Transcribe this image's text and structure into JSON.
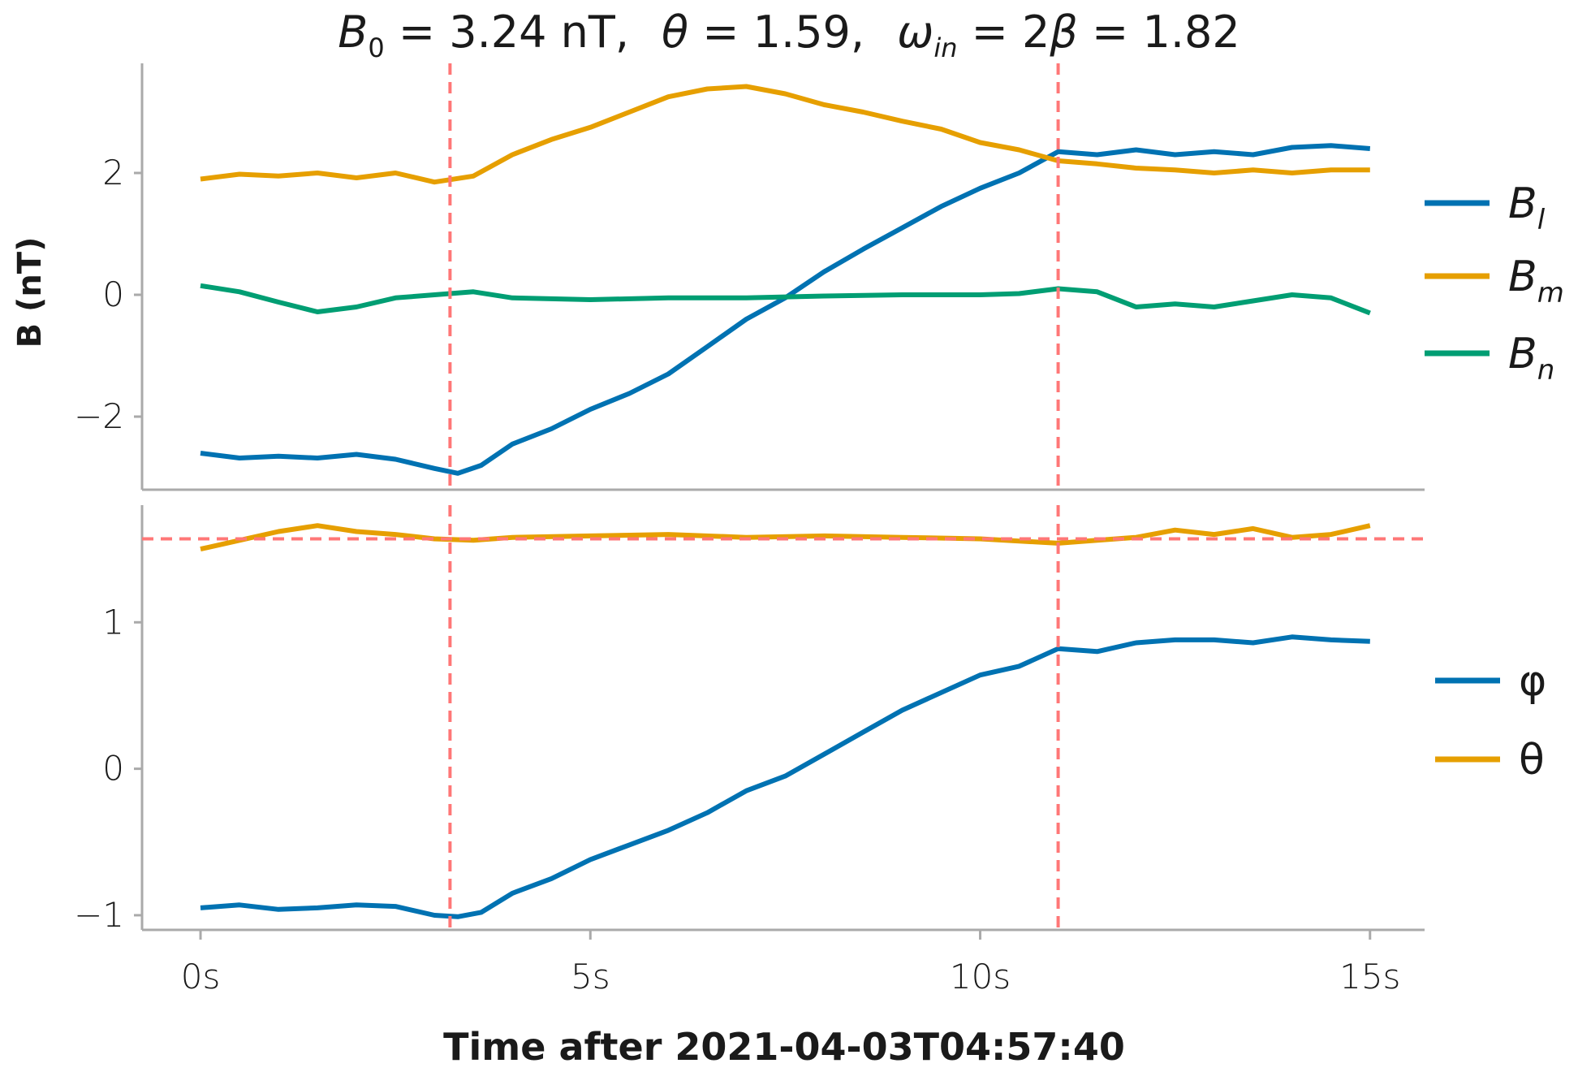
{
  "title": {
    "b0_sym": "B",
    "b0_sub": "0",
    "b0_val": " = 3.24 ",
    "b0_unit": "nT,",
    "theta_sym": "θ",
    "theta_val": " = 1.59,",
    "omega_sym": "ω",
    "omega_sub": "in",
    "omega_mid": " = 2",
    "beta_sym": "β",
    "omega_val": " = 1.82"
  },
  "chart_data": [
    {
      "type": "line",
      "ylabel": "B (nT)",
      "ylim": [
        -3.2,
        3.8
      ],
      "yticks": [
        2,
        0,
        -2
      ],
      "ytick_labels": [
        "2",
        "0",
        "−2"
      ],
      "vlines": [
        3.2,
        11.0
      ],
      "vline_color": "#ff7777",
      "legend_position": "right",
      "series": [
        {
          "name": "B_l",
          "legend_sym": "B",
          "legend_sub": "l",
          "color": "#0072b2",
          "points": [
            [
              0,
              -2.6
            ],
            [
              0.5,
              -2.68
            ],
            [
              1,
              -2.65
            ],
            [
              1.5,
              -2.68
            ],
            [
              2,
              -2.62
            ],
            [
              2.5,
              -2.7
            ],
            [
              3,
              -2.85
            ],
            [
              3.3,
              -2.93
            ],
            [
              3.6,
              -2.8
            ],
            [
              4,
              -2.45
            ],
            [
              4.5,
              -2.2
            ],
            [
              5,
              -1.88
            ],
            [
              5.5,
              -1.62
            ],
            [
              6,
              -1.3
            ],
            [
              6.5,
              -0.85
            ],
            [
              7,
              -0.4
            ],
            [
              7.5,
              -0.05
            ],
            [
              8,
              0.38
            ],
            [
              8.5,
              0.75
            ],
            [
              9,
              1.1
            ],
            [
              9.5,
              1.45
            ],
            [
              10,
              1.75
            ],
            [
              10.5,
              2.0
            ],
            [
              11,
              2.35
            ],
            [
              11.5,
              2.3
            ],
            [
              12,
              2.38
            ],
            [
              12.5,
              2.3
            ],
            [
              13,
              2.35
            ],
            [
              13.5,
              2.3
            ],
            [
              14,
              2.42
            ],
            [
              14.5,
              2.45
            ],
            [
              15,
              2.4
            ]
          ]
        },
        {
          "name": "B_m",
          "legend_sym": "B",
          "legend_sub": "m",
          "color": "#e69f00",
          "points": [
            [
              0,
              1.9
            ],
            [
              0.5,
              1.98
            ],
            [
              1,
              1.95
            ],
            [
              1.5,
              2.0
            ],
            [
              2,
              1.92
            ],
            [
              2.5,
              2.0
            ],
            [
              3,
              1.85
            ],
            [
              3.5,
              1.95
            ],
            [
              4,
              2.3
            ],
            [
              4.5,
              2.55
            ],
            [
              5,
              2.75
            ],
            [
              5.5,
              3.0
            ],
            [
              6,
              3.25
            ],
            [
              6.5,
              3.38
            ],
            [
              7,
              3.42
            ],
            [
              7.5,
              3.3
            ],
            [
              8,
              3.12
            ],
            [
              8.5,
              3.0
            ],
            [
              9,
              2.85
            ],
            [
              9.5,
              2.72
            ],
            [
              10,
              2.5
            ],
            [
              10.5,
              2.38
            ],
            [
              11,
              2.2
            ],
            [
              11.5,
              2.15
            ],
            [
              12,
              2.08
            ],
            [
              12.5,
              2.05
            ],
            [
              13,
              2.0
            ],
            [
              13.5,
              2.05
            ],
            [
              14,
              2.0
            ],
            [
              14.5,
              2.05
            ],
            [
              15,
              2.05
            ]
          ]
        },
        {
          "name": "B_n",
          "legend_sym": "B",
          "legend_sub": "n",
          "color": "#009e73",
          "points": [
            [
              0,
              0.15
            ],
            [
              0.5,
              0.05
            ],
            [
              1,
              -0.12
            ],
            [
              1.5,
              -0.28
            ],
            [
              2,
              -0.2
            ],
            [
              2.5,
              -0.05
            ],
            [
              3,
              0.0
            ],
            [
              3.5,
              0.05
            ],
            [
              4,
              -0.05
            ],
            [
              5,
              -0.08
            ],
            [
              6,
              -0.05
            ],
            [
              7,
              -0.05
            ],
            [
              8,
              -0.02
            ],
            [
              9,
              0.0
            ],
            [
              10,
              0.0
            ],
            [
              10.5,
              0.02
            ],
            [
              11,
              0.1
            ],
            [
              11.5,
              0.05
            ],
            [
              12,
              -0.2
            ],
            [
              12.5,
              -0.15
            ],
            [
              13,
              -0.2
            ],
            [
              13.5,
              -0.1
            ],
            [
              14,
              0.0
            ],
            [
              14.5,
              -0.05
            ],
            [
              15,
              -0.3
            ]
          ]
        }
      ]
    },
    {
      "type": "line",
      "ylabel": "",
      "ylim": [
        -1.1,
        1.8
      ],
      "yticks": [
        1,
        0,
        -1
      ],
      "ytick_labels": [
        "1",
        "0",
        "−1"
      ],
      "vlines": [
        3.2,
        11.0
      ],
      "hline": 1.57,
      "vline_color": "#ff7777",
      "legend_position": "right",
      "series": [
        {
          "name": "φ",
          "color": "#0072b2",
          "points": [
            [
              0,
              -0.95
            ],
            [
              0.5,
              -0.93
            ],
            [
              1,
              -0.96
            ],
            [
              1.5,
              -0.95
            ],
            [
              2,
              -0.93
            ],
            [
              2.5,
              -0.94
            ],
            [
              3,
              -1.0
            ],
            [
              3.3,
              -1.01
            ],
            [
              3.6,
              -0.98
            ],
            [
              4,
              -0.85
            ],
            [
              4.5,
              -0.75
            ],
            [
              5,
              -0.62
            ],
            [
              5.5,
              -0.52
            ],
            [
              6,
              -0.42
            ],
            [
              6.5,
              -0.3
            ],
            [
              7,
              -0.15
            ],
            [
              7.5,
              -0.05
            ],
            [
              8,
              0.1
            ],
            [
              8.5,
              0.25
            ],
            [
              9,
              0.4
            ],
            [
              9.5,
              0.52
            ],
            [
              10,
              0.64
            ],
            [
              10.5,
              0.7
            ],
            [
              11,
              0.82
            ],
            [
              11.5,
              0.8
            ],
            [
              12,
              0.86
            ],
            [
              12.5,
              0.88
            ],
            [
              13,
              0.88
            ],
            [
              13.5,
              0.86
            ],
            [
              14,
              0.9
            ],
            [
              14.5,
              0.88
            ],
            [
              15,
              0.87
            ]
          ]
        },
        {
          "name": "θ",
          "color": "#e69f00",
          "points": [
            [
              0,
              1.5
            ],
            [
              0.5,
              1.56
            ],
            [
              1,
              1.62
            ],
            [
              1.5,
              1.66
            ],
            [
              2,
              1.62
            ],
            [
              2.5,
              1.6
            ],
            [
              3,
              1.57
            ],
            [
              3.5,
              1.56
            ],
            [
              4,
              1.58
            ],
            [
              5,
              1.59
            ],
            [
              6,
              1.6
            ],
            [
              7,
              1.58
            ],
            [
              8,
              1.59
            ],
            [
              9,
              1.58
            ],
            [
              10,
              1.57
            ],
            [
              11,
              1.54
            ],
            [
              11.5,
              1.56
            ],
            [
              12,
              1.58
            ],
            [
              12.5,
              1.63
            ],
            [
              13,
              1.6
            ],
            [
              13.5,
              1.64
            ],
            [
              14,
              1.58
            ],
            [
              14.5,
              1.6
            ],
            [
              15,
              1.66
            ]
          ]
        }
      ]
    }
  ],
  "xaxis": {
    "label": "Time after 2021-04-03T04:57:40",
    "ticks": [
      0,
      5,
      10,
      15
    ],
    "tick_labels": [
      "0s",
      "5s",
      "10s",
      "15s"
    ],
    "xlim": [
      -0.75,
      15.7
    ]
  }
}
